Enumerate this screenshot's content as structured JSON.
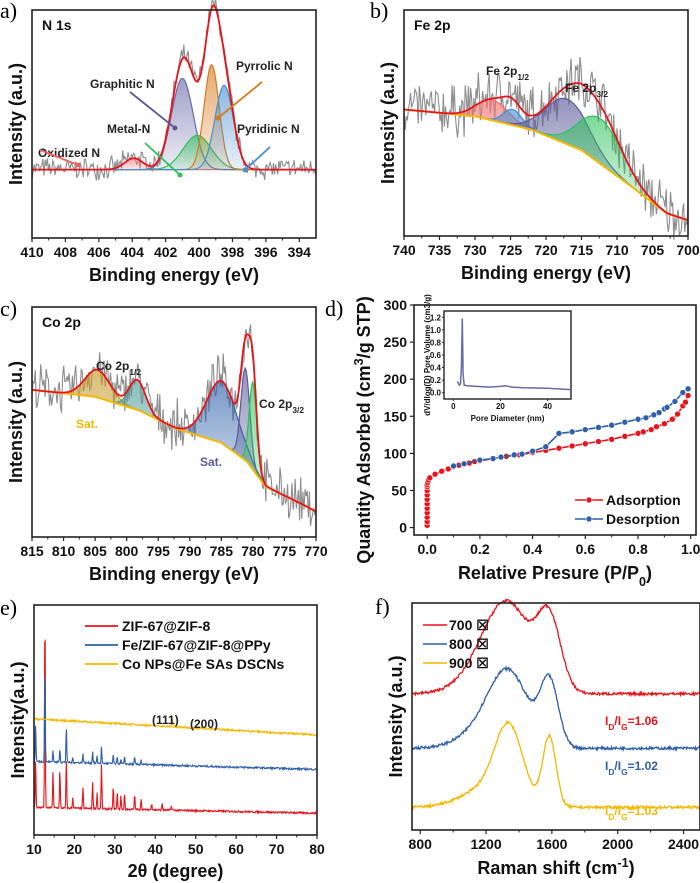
{
  "figure": {
    "panels": [
      "a)",
      "b)",
      "c)",
      "d)",
      "e)",
      "f)"
    ]
  },
  "chart_data": [
    {
      "id": "a",
      "type": "line",
      "title": "N 1s",
      "xlabel": "Binding energy (eV)",
      "ylabel": "Intensity (a.u.)",
      "xlim": [
        410,
        393
      ],
      "xticks": [
        410,
        408,
        406,
        404,
        402,
        400,
        398,
        396,
        394
      ],
      "ylim": [
        0,
        1
      ],
      "baseline": 0.3,
      "raw_noise": 0.07,
      "components": [
        {
          "name": "Oxidized N",
          "center": 403.9,
          "height": 0.05,
          "width": 0.55,
          "color": "#f07070",
          "label_color": "#f06060"
        },
        {
          "name": "Graphitic N",
          "center": 401.0,
          "height": 0.4,
          "width": 0.65,
          "color": "#6a6aa8",
          "label_color": "#5a5a9a"
        },
        {
          "name": "Metal-N",
          "center": 400.1,
          "height": 0.15,
          "width": 0.85,
          "color": "#2ec05a",
          "label_color": "#2ec05a"
        },
        {
          "name": "Pyrrolic N",
          "center": 399.25,
          "height": 0.46,
          "width": 0.45,
          "color": "#d87a1e",
          "label_color": "#d87a1e"
        },
        {
          "name": "Pyridinic N",
          "center": 398.5,
          "height": 0.37,
          "width": 0.55,
          "color": "#4a8fd0",
          "label_color": "#4a8fd0"
        }
      ],
      "envelope_color": "#e8141a",
      "raw_color": "#8c8c8c"
    },
    {
      "id": "b",
      "type": "line",
      "title": "Fe 2p",
      "xlabel": "Binding energy (eV)",
      "ylabel": "Intensity (a.u.)",
      "xlim": [
        740,
        700
      ],
      "xticks": [
        740,
        735,
        730,
        725,
        720,
        715,
        710,
        705,
        700
      ],
      "ylim": [
        0,
        1
      ],
      "annotations": [
        "Fe 2p1/2",
        "Fe 2p3/2"
      ],
      "background": [
        [
          740,
          0.56
        ],
        [
          730,
          0.53
        ],
        [
          722,
          0.47
        ],
        [
          715,
          0.38
        ],
        [
          708,
          0.22
        ],
        [
          703,
          0.1
        ],
        [
          700,
          0.07
        ]
      ],
      "components": [
        {
          "name": "Fe 2p1/2 a",
          "center": 727.5,
          "height": 0.09,
          "width": 2.2,
          "color": "#f07070"
        },
        {
          "name": "Fe 2p1/2 b",
          "center": 724.7,
          "height": 0.07,
          "width": 1.3,
          "color": "#4a8fd0"
        },
        {
          "name": "Fe 2p3/2 a",
          "center": 717.0,
          "height": 0.2,
          "width": 3.0,
          "color": "#5a5a9a"
        },
        {
          "name": "Fe 2p3/2 b",
          "center": 712.3,
          "height": 0.2,
          "width": 3.0,
          "color": "#2ec05a"
        }
      ],
      "raw_noise": 0.18,
      "envelope_color": "#e8141a",
      "raw_color": "#8c8c8c",
      "bg_color": "#f5b800"
    },
    {
      "id": "c",
      "type": "line",
      "title": "Co 2p",
      "xlabel": "Binding energy (eV)",
      "ylabel": "Intensity (a.u.)",
      "xlim": [
        815,
        770
      ],
      "xticks": [
        815,
        810,
        805,
        800,
        795,
        790,
        785,
        780,
        775,
        770
      ],
      "ylim": [
        0,
        1
      ],
      "annotations": [
        "Co 2p1/2",
        "Co 2p3/2",
        "Sat.",
        "Sat."
      ],
      "background": [
        [
          815,
          0.64
        ],
        [
          805,
          0.61
        ],
        [
          798,
          0.55
        ],
        [
          792,
          0.47
        ],
        [
          785,
          0.41
        ],
        [
          781,
          0.33
        ],
        [
          778,
          0.22
        ],
        [
          772,
          0.14
        ],
        [
          770,
          0.11
        ]
      ],
      "components": [
        {
          "name": "Sat. 1",
          "center": 804.6,
          "height": 0.12,
          "width": 2.0,
          "color": "#c79a2a"
        },
        {
          "name": "Co 2p1/2",
          "center": 798.3,
          "height": 0.13,
          "width": 1.3,
          "color": "#4e9a9a"
        },
        {
          "name": "Sat. 2",
          "center": 784.9,
          "height": 0.27,
          "width": 2.4,
          "color": "#2e5fa8"
        },
        {
          "name": "Co 2p3/2 a",
          "center": 781.2,
          "height": 0.4,
          "width": 0.7,
          "color": "#5a5a9a"
        },
        {
          "name": "Co 2p3/2 b",
          "center": 780.0,
          "height": 0.38,
          "width": 0.6,
          "color": "#2ec05a"
        }
      ],
      "raw_noise": 0.15,
      "envelope_color": "#e8141a",
      "raw_color": "#8c8c8c",
      "bg_color": "#f5b800"
    },
    {
      "id": "d",
      "type": "line",
      "xlabel": "Relative Presure (P/P0)",
      "ylabel": "Quantity Adsorbed (cm3/g STP)",
      "xlim": [
        -0.05,
        1.02
      ],
      "ylim": [
        -10,
        300
      ],
      "xticks": [
        0.0,
        0.2,
        0.4,
        0.6,
        0.8,
        1.0
      ],
      "xtick_labels": [
        "0.0",
        "0.2",
        "0.4",
        "0.6",
        "0.8",
        "1.0"
      ],
      "yticks": [
        0,
        50,
        100,
        150,
        200,
        250,
        300
      ],
      "legend": "bottom-right",
      "series": [
        {
          "name": "Adsorption",
          "color": "#e8141a",
          "x": [
            0.0,
            0.0,
            0.0,
            0.0,
            0.0,
            0.0,
            0.0,
            0.0,
            0.0,
            0.0,
            0.0,
            0.002,
            0.005,
            0.01,
            0.03,
            0.055,
            0.08,
            0.1,
            0.12,
            0.14,
            0.16,
            0.18,
            0.2,
            0.25,
            0.3,
            0.35,
            0.4,
            0.45,
            0.5,
            0.55,
            0.6,
            0.65,
            0.7,
            0.75,
            0.8,
            0.82,
            0.85,
            0.87,
            0.9,
            0.93,
            0.95,
            0.97,
            0.98,
            0.99
          ],
          "y": [
            3,
            8,
            14,
            20,
            26,
            32,
            38,
            44,
            50,
            55,
            58,
            61,
            64,
            67,
            72,
            76,
            79,
            82,
            84,
            86,
            87,
            89,
            90,
            93,
            96,
            98,
            101,
            104,
            107,
            110,
            113,
            116,
            119,
            123,
            127,
            129,
            132,
            136,
            140,
            146,
            153,
            164,
            169,
            178
          ]
        },
        {
          "name": "Desorption",
          "color": "#2e5fa8",
          "x": [
            0.1,
            0.14,
            0.2,
            0.25,
            0.28,
            0.33,
            0.36,
            0.4,
            0.45,
            0.5,
            0.55,
            0.6,
            0.65,
            0.7,
            0.75,
            0.8,
            0.83,
            0.86,
            0.88,
            0.9,
            0.91,
            0.94,
            0.97,
            0.99
          ],
          "y": [
            83,
            86,
            91,
            93,
            95,
            98,
            99,
            103,
            109,
            127,
            129,
            132,
            135,
            138,
            142,
            146,
            148,
            152,
            155,
            160,
            162,
            170,
            182,
            187
          ]
        }
      ],
      "inset": {
        "type": "line",
        "xlabel": "Pore Diameter (nm)",
        "ylabel": "dV/dlog(D) Pore Volume (cm3/g)",
        "xlim": [
          -4,
          50
        ],
        "ylim": [
          -0.1,
          1.3
        ],
        "xticks": [
          0,
          20,
          40
        ],
        "yticks": [
          0.0,
          0.2,
          0.4,
          0.6,
          0.8,
          1.0,
          1.2
        ],
        "ytick_labels": [
          "0.0",
          "0.2",
          "0.4",
          "0.6",
          "0.8",
          "1.0",
          "1.2"
        ],
        "color": "#6a6aa8",
        "x": [
          1.6,
          2.0,
          2.5,
          3.0,
          3.4,
          3.8,
          4.1,
          4.6,
          6,
          10,
          15,
          20,
          22,
          25,
          30,
          40,
          50
        ],
        "y": [
          0.18,
          0.16,
          0.12,
          0.14,
          0.4,
          1.18,
          0.3,
          0.12,
          0.11,
          0.1,
          0.09,
          0.1,
          0.11,
          0.09,
          0.08,
          0.07,
          0.05
        ]
      }
    },
    {
      "id": "e",
      "type": "line",
      "xlabel": "2θ (degree)",
      "ylabel": "Intensity(a.u.)",
      "xlim": [
        10,
        80
      ],
      "xticks": [
        10,
        20,
        30,
        40,
        50,
        60,
        70,
        80
      ],
      "ylim": [
        0,
        1
      ],
      "legend": "top",
      "annotations": [
        "(111)",
        "(200)"
      ],
      "series": [
        {
          "name": "ZIF-67@ZIF-8",
          "color": "#e8141a",
          "offset": 0.12,
          "slope_end": 0.095,
          "peaks": [
            [
              10.4,
              0.22
            ],
            [
              12.7,
              0.9
            ],
            [
              14.7,
              0.16
            ],
            [
              16.4,
              0.17
            ],
            [
              18.0,
              0.22
            ],
            [
              19.6,
              0.05
            ],
            [
              22.1,
              0.09
            ],
            [
              24.5,
              0.12
            ],
            [
              25.6,
              0.07
            ],
            [
              26.7,
              0.2
            ],
            [
              29.6,
              0.1
            ],
            [
              30.6,
              0.08
            ],
            [
              31.5,
              0.06
            ],
            [
              32.4,
              0.07
            ],
            [
              34.9,
              0.07
            ],
            [
              36.5,
              0.05
            ],
            [
              39.1,
              0.03
            ],
            [
              41.7,
              0.03
            ],
            [
              44.0,
              0.02
            ]
          ]
        },
        {
          "name": "Fe/ZIF-67@ZIF-8@PPy",
          "color": "#2e5fa8",
          "offset": 0.32,
          "slope_end": 0.285,
          "peaks": [
            [
              10.4,
              0.17
            ],
            [
              12.7,
              0.45
            ],
            [
              14.7,
              0.05
            ],
            [
              16.4,
              0.06
            ],
            [
              18.0,
              0.16
            ],
            [
              19.6,
              0.02
            ],
            [
              22.1,
              0.04
            ],
            [
              24.5,
              0.05
            ],
            [
              25.6,
              0.03
            ],
            [
              26.7,
              0.07
            ],
            [
              29.6,
              0.04
            ],
            [
              30.6,
              0.03
            ],
            [
              31.5,
              0.02
            ],
            [
              32.4,
              0.03
            ],
            [
              34.9,
              0.03
            ],
            [
              36.5,
              0.02
            ]
          ]
        },
        {
          "name": "Co NPs@Fe SAs DSCNs",
          "color": "#f5b800",
          "offset": 0.505,
          "slope_end": 0.435,
          "peaks": [
            [
              44.2,
              0.035
            ],
            [
              51.5,
              0.012
            ]
          ]
        }
      ]
    },
    {
      "id": "f",
      "type": "line",
      "xlabel": "Raman shift (cm-1)",
      "ylabel": "Intensity (a.u.)",
      "xlim": [
        750,
        2500
      ],
      "xticks": [
        800,
        1200,
        1600,
        2000,
        2400
      ],
      "ylim": [
        0,
        1
      ],
      "legend": "top-left",
      "series": [
        {
          "name": "700 ☒",
          "color": "#e8141a",
          "offset": 0.6,
          "D": 0.35,
          "G": 0.3,
          "Dw": 140,
          "Gw": 70,
          "ratio_label": "ID/IG=1.06"
        },
        {
          "name": "800 ☒",
          "color": "#2e5fa8",
          "offset": 0.36,
          "D": 0.3,
          "G": 0.28,
          "Dw": 120,
          "Gw": 55,
          "ratio_label": "ID/IG=1.02"
        },
        {
          "name": "900 ☒",
          "color": "#f5b800",
          "offset": 0.1,
          "D": 0.32,
          "G": 0.31,
          "Dw": 85,
          "Gw": 40,
          "ratio_label": "ID/IG=1.03"
        }
      ]
    }
  ]
}
